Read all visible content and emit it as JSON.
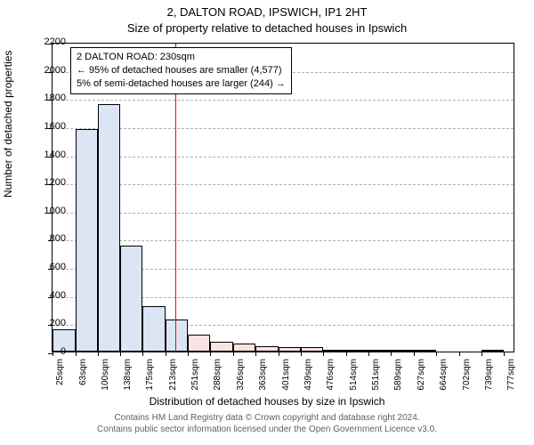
{
  "title": "2, DALTON ROAD, IPSWICH, IP1 2HT",
  "subtitle": "Size of property relative to detached houses in Ipswich",
  "ylabel": "Number of detached properties",
  "xlabel": "Distribution of detached houses by size in Ipswich",
  "footer1": "Contains HM Land Registry data © Crown copyright and database right 2024.",
  "footer2": "Contains public sector information licensed under the Open Government Licence v3.0.",
  "chart": {
    "type": "histogram",
    "ylim": [
      0,
      2200
    ],
    "ytick_step": 200,
    "x_min": 25,
    "x_max": 796,
    "bar_fill": "#dbe5f4",
    "bar_fill_right": "#fbe3e3",
    "bar_border": "#000000",
    "grid_color": "#b0b0b0",
    "marker_x": 230,
    "marker_color": "#ff0000",
    "xtick_labels": [
      "25sqm",
      "63sqm",
      "100sqm",
      "138sqm",
      "175sqm",
      "213sqm",
      "251sqm",
      "288sqm",
      "326sqm",
      "363sqm",
      "401sqm",
      "439sqm",
      "476sqm",
      "514sqm",
      "551sqm",
      "589sqm",
      "627sqm",
      "664sqm",
      "702sqm",
      "739sqm",
      "777sqm"
    ],
    "xtick_positions": [
      25,
      63,
      100,
      138,
      175,
      213,
      251,
      288,
      326,
      363,
      401,
      439,
      476,
      514,
      551,
      589,
      627,
      664,
      702,
      739,
      777
    ],
    "bars": [
      {
        "x0": 25,
        "x1": 63,
        "val": 155
      },
      {
        "x0": 63,
        "x1": 100,
        "val": 1580
      },
      {
        "x0": 100,
        "x1": 138,
        "val": 1760
      },
      {
        "x0": 138,
        "x1": 175,
        "val": 750
      },
      {
        "x0": 175,
        "x1": 213,
        "val": 320
      },
      {
        "x0": 213,
        "x1": 251,
        "val": 230
      },
      {
        "x0": 251,
        "x1": 288,
        "val": 120
      },
      {
        "x0": 288,
        "x1": 326,
        "val": 70
      },
      {
        "x0": 326,
        "x1": 363,
        "val": 55
      },
      {
        "x0": 363,
        "x1": 401,
        "val": 40
      },
      {
        "x0": 401,
        "x1": 439,
        "val": 30
      },
      {
        "x0": 439,
        "x1": 476,
        "val": 30
      },
      {
        "x0": 476,
        "x1": 514,
        "val": 7
      },
      {
        "x0": 514,
        "x1": 551,
        "val": 2
      },
      {
        "x0": 551,
        "x1": 589,
        "val": 2
      },
      {
        "x0": 589,
        "x1": 627,
        "val": 2
      },
      {
        "x0": 627,
        "x1": 664,
        "val": 2
      },
      {
        "x0": 664,
        "x1": 702,
        "val": 0
      },
      {
        "x0": 702,
        "x1": 739,
        "val": 0
      },
      {
        "x0": 739,
        "x1": 777,
        "val": 2
      }
    ]
  },
  "annotation": {
    "line1": "2 DALTON ROAD: 230sqm",
    "line2": "← 95% of detached houses are smaller (4,577)",
    "line3": "5% of semi-detached houses are larger (244) →"
  }
}
